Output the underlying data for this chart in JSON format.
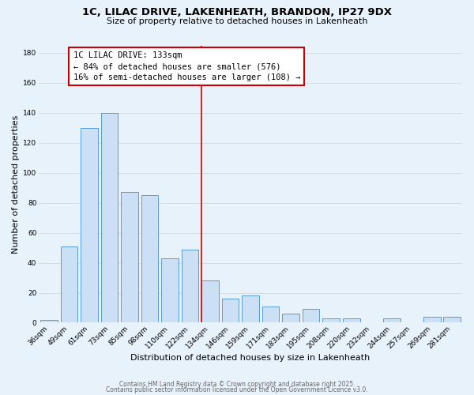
{
  "title_line1": "1C, LILAC DRIVE, LAKENHEATH, BRANDON, IP27 9DX",
  "title_line2": "Size of property relative to detached houses in Lakenheath",
  "xlabel": "Distribution of detached houses by size in Lakenheath",
  "ylabel": "Number of detached properties",
  "categories": [
    "36sqm",
    "49sqm",
    "61sqm",
    "73sqm",
    "85sqm",
    "98sqm",
    "110sqm",
    "122sqm",
    "134sqm",
    "146sqm",
    "159sqm",
    "171sqm",
    "183sqm",
    "195sqm",
    "208sqm",
    "220sqm",
    "232sqm",
    "244sqm",
    "257sqm",
    "269sqm",
    "281sqm"
  ],
  "values": [
    2,
    51,
    130,
    140,
    87,
    85,
    43,
    49,
    28,
    16,
    18,
    11,
    6,
    9,
    3,
    3,
    0,
    3,
    0,
    4,
    4
  ],
  "bar_color": "#cce0f5",
  "bar_edge_color": "#5b9bd5",
  "highlight_index": 8,
  "highlight_line_color": "#cc0000",
  "annotation_title": "1C LILAC DRIVE: 133sqm",
  "annotation_line1": "← 84% of detached houses are smaller (576)",
  "annotation_line2": "16% of semi-detached houses are larger (108) →",
  "annotation_box_edge_color": "#cc0000",
  "annotation_box_face_color": "#ffffff",
  "ylim": [
    0,
    185
  ],
  "yticks": [
    0,
    20,
    40,
    60,
    80,
    100,
    120,
    140,
    160,
    180
  ],
  "grid_color": "#c8dcea",
  "background_color": "#e8f2fa",
  "footer_line1": "Contains HM Land Registry data © Crown copyright and database right 2025.",
  "footer_line2": "Contains public sector information licensed under the Open Government Licence v3.0.",
  "title_fontsize": 9.5,
  "subtitle_fontsize": 8,
  "axis_label_fontsize": 8,
  "tick_fontsize": 6.5,
  "annotation_title_fontsize": 7.5,
  "annotation_body_fontsize": 7,
  "footer_fontsize": 5.5
}
